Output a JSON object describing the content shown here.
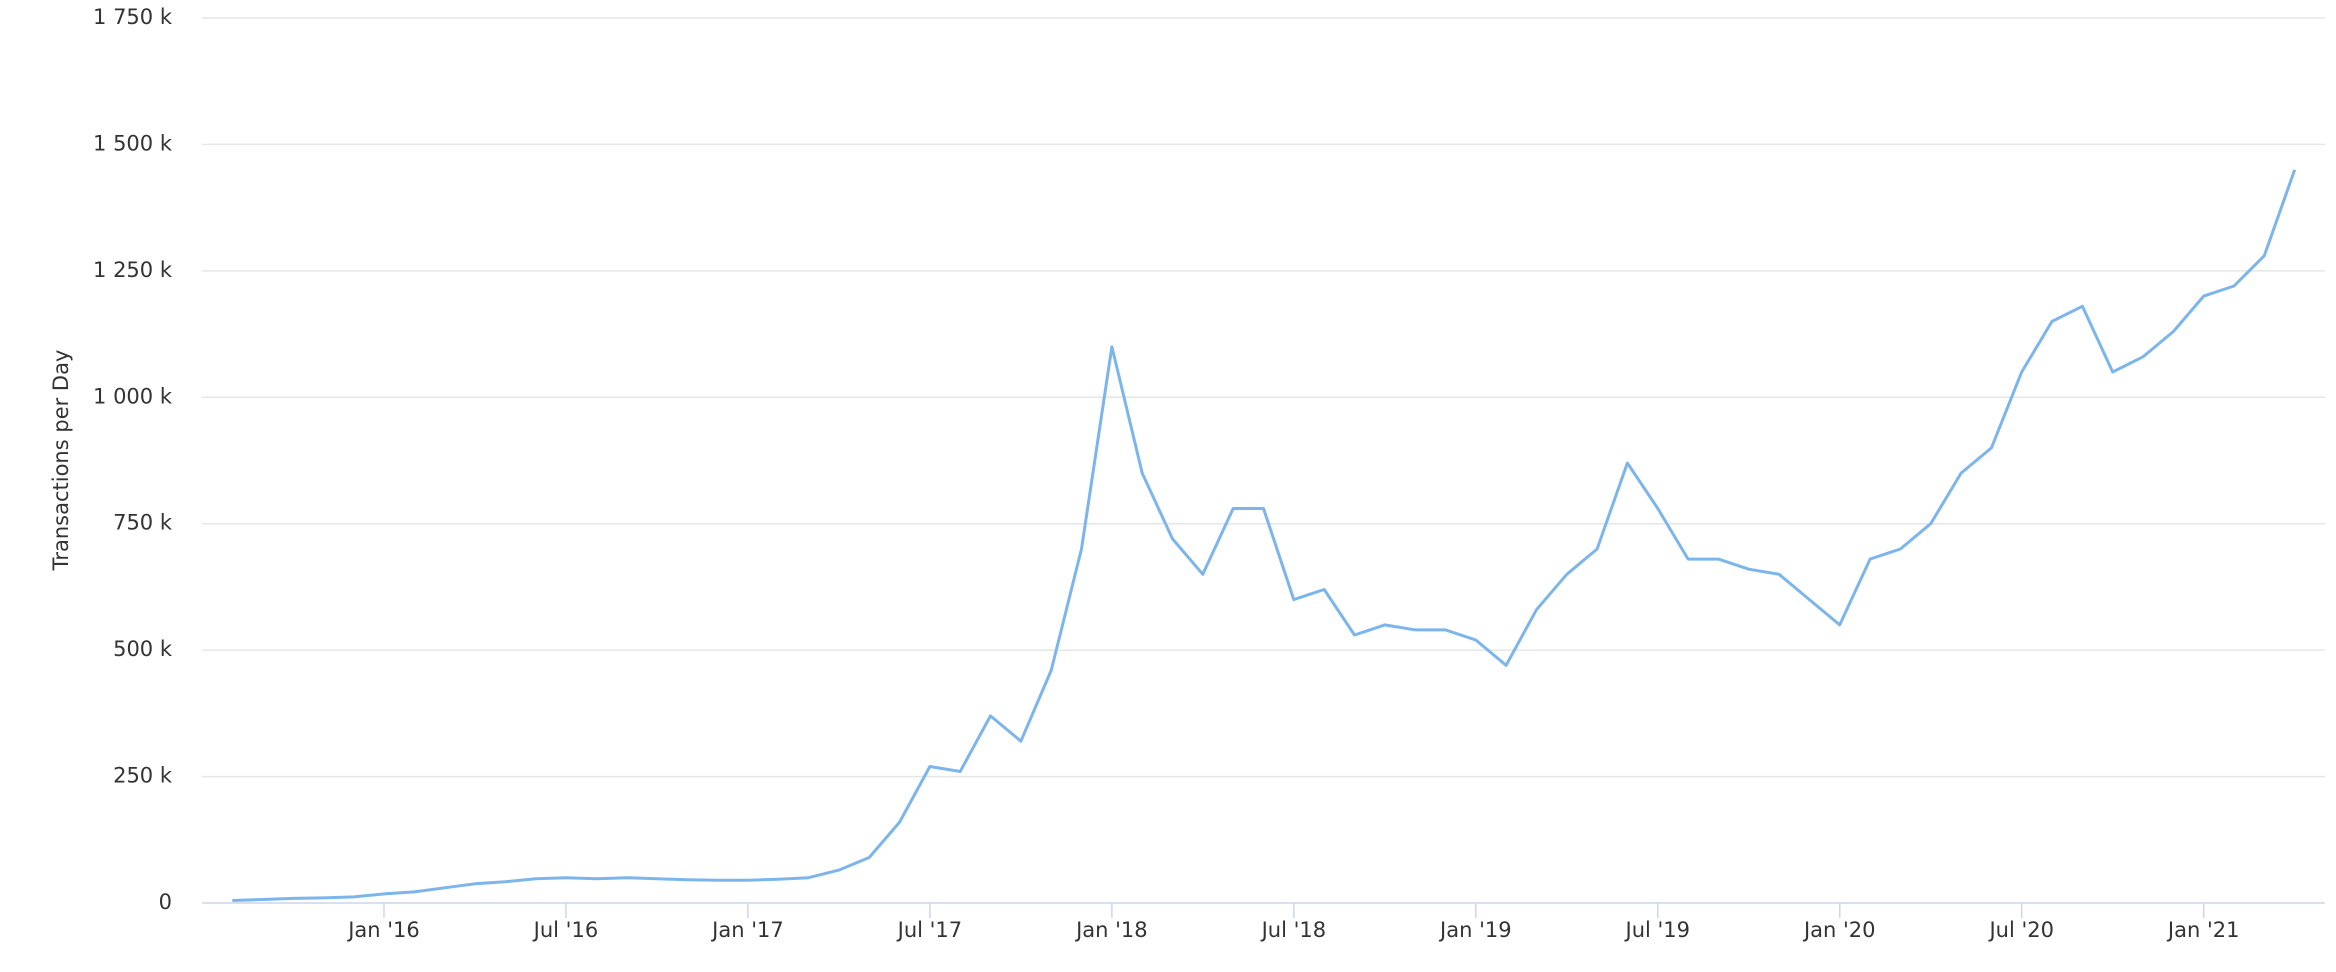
{
  "chart_data": {
    "type": "line",
    "y_label": "Transactions per Day",
    "x": [
      "2015-08",
      "2015-09",
      "2015-10",
      "2015-11",
      "2015-12",
      "2016-01",
      "2016-02",
      "2016-03",
      "2016-04",
      "2016-05",
      "2016-06",
      "2016-07",
      "2016-08",
      "2016-09",
      "2016-10",
      "2016-11",
      "2016-12",
      "2017-01",
      "2017-02",
      "2017-03",
      "2017-04",
      "2017-05",
      "2017-06",
      "2017-07",
      "2017-08",
      "2017-09",
      "2017-10",
      "2017-11",
      "2017-12",
      "2018-01",
      "2018-02",
      "2018-03",
      "2018-04",
      "2018-05",
      "2018-06",
      "2018-07",
      "2018-08",
      "2018-09",
      "2018-10",
      "2018-11",
      "2018-12",
      "2019-01",
      "2019-02",
      "2019-03",
      "2019-04",
      "2019-05",
      "2019-06",
      "2019-07",
      "2019-08",
      "2019-09",
      "2019-10",
      "2019-11",
      "2019-12",
      "2020-01",
      "2020-02",
      "2020-03",
      "2020-04",
      "2020-05",
      "2020-06",
      "2020-07",
      "2020-08",
      "2020-09",
      "2020-10",
      "2020-11",
      "2020-12",
      "2021-01",
      "2021-02",
      "2021-03",
      "2021-04"
    ],
    "series": [
      {
        "name": "Transactions",
        "color": "#7cb5ec",
        "values": [
          5000,
          7000,
          9000,
          10000,
          12000,
          18000,
          22000,
          30000,
          38000,
          42000,
          48000,
          50000,
          48000,
          50000,
          48000,
          46000,
          45000,
          45000,
          47000,
          50000,
          65000,
          90000,
          160000,
          270000,
          260000,
          370000,
          320000,
          460000,
          700000,
          1100000,
          850000,
          720000,
          650000,
          780000,
          780000,
          600000,
          620000,
          530000,
          550000,
          540000,
          540000,
          520000,
          470000,
          580000,
          650000,
          700000,
          870000,
          780000,
          680000,
          680000,
          660000,
          650000,
          600000,
          550000,
          680000,
          700000,
          750000,
          850000,
          900000,
          1050000,
          1150000,
          1180000,
          1050000,
          1080000,
          1130000,
          1200000,
          1220000,
          1280000,
          1450000
        ]
      }
    ],
    "xlim": [
      "2015-07",
      "2021-05"
    ],
    "xticks": [
      {
        "value": "2016-01",
        "label": "Jan '16"
      },
      {
        "value": "2016-07",
        "label": "Jul '16"
      },
      {
        "value": "2017-01",
        "label": "Jan '17"
      },
      {
        "value": "2017-07",
        "label": "Jul '17"
      },
      {
        "value": "2018-01",
        "label": "Jan '18"
      },
      {
        "value": "2018-07",
        "label": "Jul '18"
      },
      {
        "value": "2019-01",
        "label": "Jan '19"
      },
      {
        "value": "2019-07",
        "label": "Jul '19"
      },
      {
        "value": "2020-01",
        "label": "Jan '20"
      },
      {
        "value": "2020-07",
        "label": "Jul '20"
      },
      {
        "value": "2021-01",
        "label": "Jan '21"
      }
    ],
    "ylim": [
      0,
      1750000
    ],
    "yticks": [
      0,
      {
        "value": 250000,
        "label": "250 k"
      },
      {
        "value": 500000,
        "label": "500 k"
      },
      {
        "value": 750000,
        "label": "750 k"
      },
      {
        "value": 1000000,
        "label": "1 000 k"
      },
      {
        "value": 1250000,
        "label": "1 250 k"
      },
      {
        "value": 1500000,
        "label": "1 500 k"
      },
      {
        "value": 1750000,
        "label": "1 750 k"
      }
    ],
    "grid": true
  }
}
